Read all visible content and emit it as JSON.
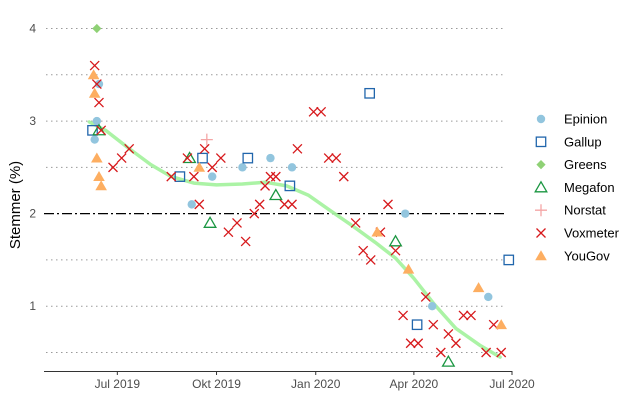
{
  "chart_data": {
    "type": "scatter",
    "ylabel": "Stemmer (%)",
    "xlabel": "",
    "x_axis": {
      "type": "date",
      "range": [
        "2019-04-24",
        "2020-07-01"
      ],
      "ticks": [
        {
          "date": "2019-07-01",
          "label": "Jul 2019"
        },
        {
          "date": "2019-10-01",
          "label": "Okt 2019"
        },
        {
          "date": "2020-01-01",
          "label": "Jan 2020"
        },
        {
          "date": "2020-04-01",
          "label": "Apr 2020"
        },
        {
          "date": "2020-07-01",
          "label": "Jul 2020"
        }
      ]
    },
    "y_axis": {
      "range": [
        0.3,
        4.2
      ],
      "ticks": [
        {
          "value": 1,
          "label": "1"
        },
        {
          "value": 2,
          "label": "2"
        },
        {
          "value": 3,
          "label": "3"
        },
        {
          "value": 4,
          "label": "4"
        }
      ],
      "dotted_gridlines": [
        0.5,
        1,
        1.5,
        2.5,
        3,
        3.5,
        4
      ]
    },
    "reference_line": {
      "y": 2,
      "style": "dash-dot",
      "color": "#000000"
    },
    "grid": "horizontal-dotted",
    "legend_position": "right",
    "series": [
      {
        "name": "Epinion",
        "marker": "circle",
        "color": "#92C5DE",
        "points": [
          [
            "2019-06-10",
            2.8
          ],
          [
            "2019-06-12",
            3.0
          ],
          [
            "2019-06-14",
            3.4
          ],
          [
            "2019-09-08",
            2.1
          ],
          [
            "2019-09-27",
            2.4
          ],
          [
            "2019-10-25",
            2.5
          ],
          [
            "2019-11-20",
            2.6
          ],
          [
            "2019-12-10",
            2.5
          ],
          [
            "2020-03-24",
            2.0
          ],
          [
            "2020-04-18",
            1.0
          ],
          [
            "2020-06-09",
            1.1
          ]
        ]
      },
      {
        "name": "Gallup",
        "marker": "square-open",
        "color": "#2166AC",
        "points": [
          [
            "2019-06-08",
            2.9
          ],
          [
            "2019-08-28",
            2.4
          ],
          [
            "2019-09-18",
            2.6
          ],
          [
            "2019-10-30",
            2.6
          ],
          [
            "2019-12-08",
            2.3
          ],
          [
            "2020-02-20",
            3.3
          ],
          [
            "2020-04-04",
            0.8
          ],
          [
            "2020-06-28",
            1.5
          ]
        ]
      },
      {
        "name": "Greens",
        "marker": "diamond",
        "color": "#8FD175",
        "points": [
          [
            "2019-06-12",
            4.0
          ]
        ]
      },
      {
        "name": "Megafon",
        "marker": "triangle-open",
        "color": "#1A9641",
        "points": [
          [
            "2019-06-14",
            2.9
          ],
          [
            "2019-09-06",
            2.6
          ],
          [
            "2019-09-25",
            1.9
          ],
          [
            "2019-11-25",
            2.2
          ],
          [
            "2020-03-15",
            1.7
          ],
          [
            "2020-05-03",
            0.4
          ]
        ]
      },
      {
        "name": "Norstat",
        "marker": "plus",
        "color": "#F4A6A6",
        "points": [
          [
            "2019-09-22",
            2.8
          ]
        ]
      },
      {
        "name": "Voxmeter",
        "marker": "cross",
        "color": "#D7191C",
        "points": [
          [
            "2019-06-10",
            3.6
          ],
          [
            "2019-06-12",
            3.4
          ],
          [
            "2019-06-14",
            3.2
          ],
          [
            "2019-06-16",
            2.9
          ],
          [
            "2019-06-27",
            2.5
          ],
          [
            "2019-07-05",
            2.6
          ],
          [
            "2019-07-12",
            2.7
          ],
          [
            "2019-08-20",
            2.4
          ],
          [
            "2019-09-04",
            2.6
          ],
          [
            "2019-09-10",
            2.4
          ],
          [
            "2019-09-15",
            2.1
          ],
          [
            "2019-09-20",
            2.7
          ],
          [
            "2019-09-27",
            2.5
          ],
          [
            "2019-10-05",
            2.6
          ],
          [
            "2019-10-12",
            1.8
          ],
          [
            "2019-10-20",
            1.9
          ],
          [
            "2019-10-28",
            1.7
          ],
          [
            "2019-11-05",
            2.0
          ],
          [
            "2019-11-10",
            2.1
          ],
          [
            "2019-11-15",
            2.3
          ],
          [
            "2019-11-20",
            2.4
          ],
          [
            "2019-11-25",
            2.4
          ],
          [
            "2019-12-03",
            2.1
          ],
          [
            "2019-12-10",
            2.1
          ],
          [
            "2019-12-15",
            2.7
          ],
          [
            "2019-12-30",
            3.1
          ],
          [
            "2020-01-06",
            3.1
          ],
          [
            "2020-01-13",
            2.6
          ],
          [
            "2020-01-20",
            2.6
          ],
          [
            "2020-01-27",
            2.4
          ],
          [
            "2020-02-07",
            1.9
          ],
          [
            "2020-02-14",
            1.6
          ],
          [
            "2020-02-21",
            1.5
          ],
          [
            "2020-03-01",
            1.8
          ],
          [
            "2020-03-08",
            2.1
          ],
          [
            "2020-03-15",
            1.6
          ],
          [
            "2020-03-22",
            0.9
          ],
          [
            "2020-03-29",
            0.6
          ],
          [
            "2020-04-05",
            0.6
          ],
          [
            "2020-04-12",
            1.1
          ],
          [
            "2020-04-19",
            0.8
          ],
          [
            "2020-04-26",
            0.5
          ],
          [
            "2020-05-03",
            0.7
          ],
          [
            "2020-05-10",
            0.6
          ],
          [
            "2020-05-17",
            0.9
          ],
          [
            "2020-05-24",
            0.9
          ],
          [
            "2020-06-07",
            0.5
          ],
          [
            "2020-06-14",
            0.8
          ],
          [
            "2020-06-21",
            0.5
          ]
        ]
      },
      {
        "name": "YouGov",
        "marker": "triangle",
        "color": "#FDAE61",
        "points": [
          [
            "2019-06-09",
            3.5
          ],
          [
            "2019-06-10",
            3.3
          ],
          [
            "2019-06-12",
            2.6
          ],
          [
            "2019-06-14",
            2.4
          ],
          [
            "2019-06-16",
            2.3
          ],
          [
            "2019-09-15",
            2.5
          ],
          [
            "2020-02-27",
            1.8
          ],
          [
            "2020-03-27",
            1.4
          ],
          [
            "2020-05-31",
            1.2
          ],
          [
            "2020-06-21",
            0.8
          ]
        ]
      }
    ],
    "trend_line": {
      "color": "#A6F2A0",
      "points": [
        [
          "2019-06-05",
          2.99
        ],
        [
          "2019-06-20",
          2.9
        ],
        [
          "2019-07-10",
          2.72
        ],
        [
          "2019-08-01",
          2.53
        ],
        [
          "2019-08-20",
          2.4
        ],
        [
          "2019-09-10",
          2.33
        ],
        [
          "2019-10-01",
          2.31
        ],
        [
          "2019-10-25",
          2.32
        ],
        [
          "2019-11-15",
          2.34
        ],
        [
          "2019-12-05",
          2.3
        ],
        [
          "2019-12-25",
          2.2
        ],
        [
          "2020-01-15",
          2.03
        ],
        [
          "2020-02-05",
          1.86
        ],
        [
          "2020-02-25",
          1.69
        ],
        [
          "2020-03-15",
          1.52
        ],
        [
          "2020-04-01",
          1.3
        ],
        [
          "2020-04-20",
          1.02
        ],
        [
          "2020-05-10",
          0.76
        ],
        [
          "2020-06-01",
          0.58
        ],
        [
          "2020-06-20",
          0.45
        ]
      ]
    }
  }
}
